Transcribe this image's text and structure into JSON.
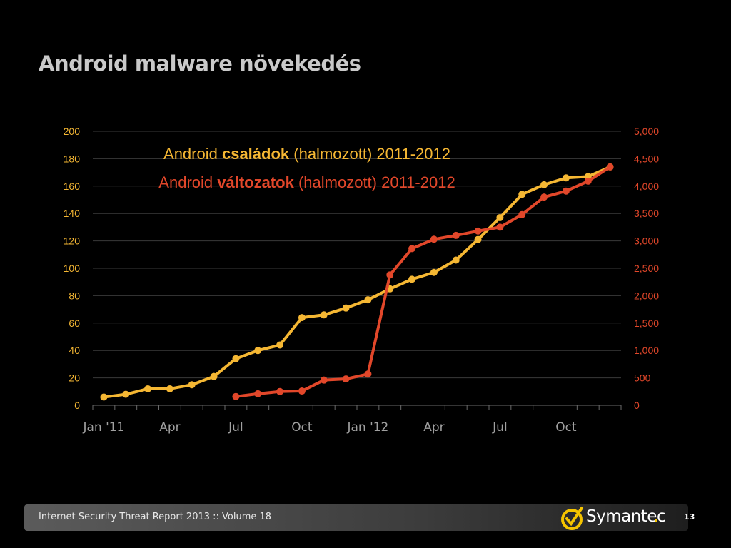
{
  "title": "Android malware növekedés",
  "legend": {
    "families": {
      "pre": "Android ",
      "bold": "családok",
      "post": " (halmozott) 2011-2012"
    },
    "variants": {
      "pre": "Android ",
      "bold": "változatok",
      "post": " (halmozott) 2011-2012"
    }
  },
  "footer": {
    "text": "Internet Security Threat Report 2013 :: Volume 18",
    "page": "13",
    "brand": "Symantec"
  },
  "colors": {
    "families": "#f5b733",
    "variants": "#e2472a",
    "left_axis": "#f5b733",
    "right_axis": "#e2472a",
    "grid": "#3a3a3a",
    "x_labels": "#a0a0a0"
  },
  "chart_data": {
    "type": "line",
    "x_tick_labels": [
      "Jan '11",
      "Apr",
      "Jul",
      "Oct",
      "Jan '12",
      "Apr",
      "Jul",
      "Oct"
    ],
    "x": [
      "2011-01",
      "2011-02",
      "2011-03",
      "2011-04",
      "2011-05",
      "2011-06",
      "2011-07",
      "2011-08",
      "2011-09",
      "2011-10",
      "2011-11",
      "2011-12",
      "2012-01",
      "2012-02",
      "2012-03",
      "2012-04",
      "2012-05",
      "2012-06",
      "2012-07",
      "2012-08",
      "2012-09",
      "2012-10",
      "2012-11",
      "2012-12"
    ],
    "left_axis": {
      "ylim": [
        0,
        200
      ],
      "ticks": [
        "0",
        "20",
        "40",
        "60",
        "80",
        "100",
        "120",
        "140",
        "160",
        "180",
        "200"
      ]
    },
    "right_axis": {
      "ylim": [
        0,
        5000
      ],
      "ticks": [
        "0",
        "500",
        "1,000",
        "1,500",
        "2,000",
        "2,500",
        "3,000",
        "3,500",
        "4,000",
        "4,500",
        "5,000"
      ]
    },
    "series": [
      {
        "name": "Android családok (halmozott) 2011-2012",
        "axis": "left",
        "values": [
          6,
          8,
          12,
          12,
          15,
          21,
          34,
          40,
          44,
          64,
          66,
          71,
          77,
          85,
          92,
          97,
          106,
          121,
          137,
          154,
          161,
          166,
          167,
          174
        ]
      },
      {
        "name": "Android változatok (halmozott) 2011-2012",
        "axis": "right",
        "values": [
          null,
          null,
          null,
          null,
          null,
          null,
          160,
          210,
          250,
          260,
          460,
          480,
          570,
          2380,
          2860,
          3030,
          3100,
          3180,
          3250,
          3480,
          3800,
          3910,
          4090,
          4350
        ]
      }
    ],
    "grid": true
  }
}
